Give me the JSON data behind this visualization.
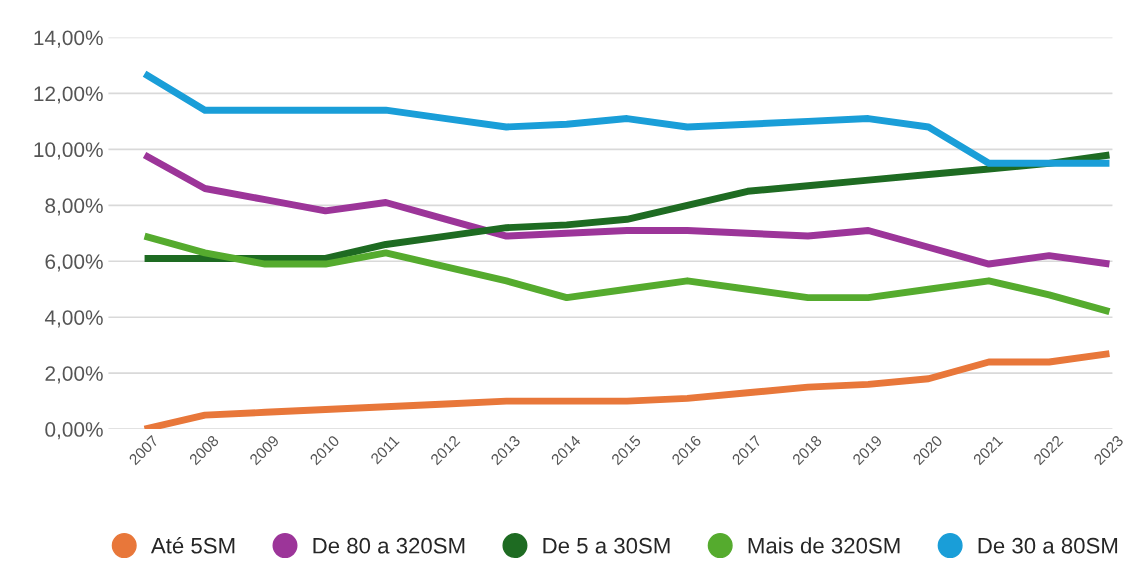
{
  "chart_data": {
    "type": "line",
    "categories": [
      "2007",
      "2008",
      "2009",
      "2010",
      "2011",
      "2012",
      "2013",
      "2014",
      "2015",
      "2016",
      "2017",
      "2018",
      "2019",
      "2020",
      "2021",
      "2022",
      "2023"
    ],
    "series": [
      {
        "name": "Até 5SM",
        "color": "#e8773a",
        "values": [
          0.0,
          0.5,
          0.6,
          0.7,
          0.8,
          0.9,
          1.0,
          1.0,
          1.0,
          1.1,
          1.3,
          1.5,
          1.6,
          1.8,
          2.4,
          2.4,
          2.7
        ]
      },
      {
        "name": "De 80 a 320SM",
        "color": "#9c3599",
        "values": [
          9.8,
          8.6,
          8.2,
          7.8,
          8.1,
          7.5,
          6.9,
          7.0,
          7.1,
          7.1,
          7.0,
          6.9,
          7.1,
          6.5,
          5.9,
          6.2,
          5.9
        ]
      },
      {
        "name": "De 5 a 30SM",
        "color": "#1e6b22",
        "values": [
          6.1,
          6.1,
          6.1,
          6.1,
          6.6,
          6.9,
          7.2,
          7.3,
          7.5,
          8.0,
          8.5,
          8.7,
          8.9,
          9.1,
          9.3,
          9.5,
          9.8
        ]
      },
      {
        "name": "Mais de 320SM",
        "color": "#55ab2e",
        "values": [
          6.9,
          6.3,
          5.9,
          5.9,
          6.3,
          5.8,
          5.3,
          4.7,
          5.0,
          5.3,
          5.0,
          4.7,
          4.7,
          5.0,
          5.3,
          4.8,
          4.2
        ]
      },
      {
        "name": "De 30 a 80SM",
        "color": "#1a9ed8",
        "values": [
          12.7,
          11.4,
          11.4,
          11.4,
          11.4,
          11.1,
          10.8,
          10.9,
          11.1,
          10.8,
          10.9,
          11.0,
          11.1,
          10.8,
          9.5,
          9.5,
          9.5
        ]
      }
    ],
    "ylim": [
      0,
      14
    ],
    "yticks": [
      {
        "value": 0,
        "label": "0,00%"
      },
      {
        "value": 2,
        "label": "2,00%"
      },
      {
        "value": 4,
        "label": "4,00%"
      },
      {
        "value": 6,
        "label": "6,00%"
      },
      {
        "value": 8,
        "label": "8,00%"
      },
      {
        "value": 10,
        "label": "10,00%"
      },
      {
        "value": 12,
        "label": "12,00%"
      },
      {
        "value": 14,
        "label": "14,00%"
      }
    ],
    "grid": "y",
    "legend": "bottom",
    "marker": "none",
    "line_style": "solid"
  }
}
